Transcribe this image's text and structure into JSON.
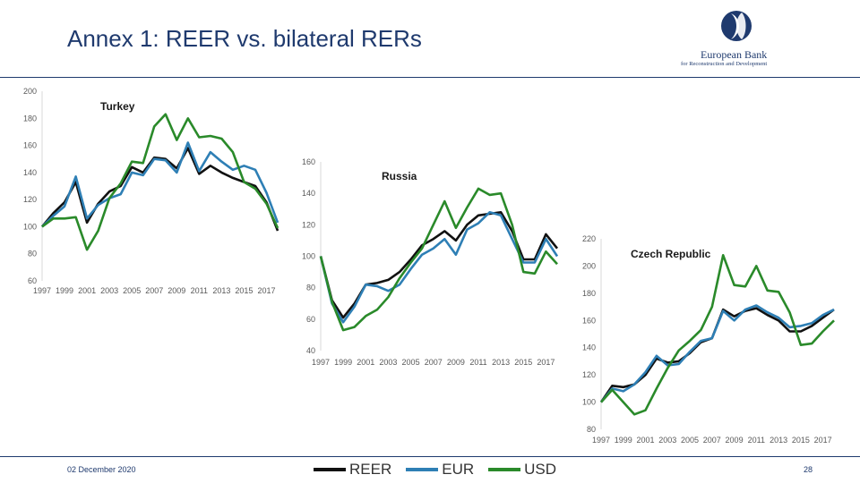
{
  "slide": {
    "title": "Annex 1: REER vs. bilateral RERs",
    "date": "02 December 2020",
    "page_number": "28",
    "logo_name": "European Bank",
    "logo_subtitle": "for Reconstruction and Development"
  },
  "colors": {
    "REER": "#111111",
    "EUR": "#2e7fb5",
    "USD": "#2a8a2a",
    "accent": "#1f3a6e"
  },
  "legend": [
    {
      "label": "REER",
      "color": "#111111"
    },
    {
      "label": "EUR",
      "color": "#2e7fb5"
    },
    {
      "label": "USD",
      "color": "#2a8a2a"
    }
  ],
  "chart_data": [
    {
      "type": "line",
      "title": "Turkey",
      "x": [
        1997,
        1998,
        1999,
        2000,
        2001,
        2002,
        2003,
        2004,
        2005,
        2006,
        2007,
        2008,
        2009,
        2010,
        2011,
        2012,
        2013,
        2014,
        2015,
        2016,
        2017,
        2018
      ],
      "xticks": [
        "1997",
        "1999",
        "2001",
        "2003",
        "2005",
        "2007",
        "2009",
        "2011",
        "2013",
        "2015",
        "2017"
      ],
      "ylim": [
        60,
        200
      ],
      "yticks": [
        "60",
        "80",
        "100",
        "120",
        "140",
        "160",
        "180",
        "200"
      ],
      "grid": false,
      "series": [
        {
          "name": "REER",
          "values": [
            100,
            110,
            118,
            133,
            103,
            117,
            126,
            130,
            144,
            140,
            151,
            150,
            143,
            158,
            139,
            145,
            140,
            136,
            133,
            130,
            118,
            97
          ]
        },
        {
          "name": "EUR",
          "values": [
            100,
            108,
            115,
            137,
            106,
            116,
            121,
            124,
            140,
            138,
            150,
            149,
            140,
            162,
            141,
            155,
            148,
            142,
            145,
            142,
            125,
            103
          ]
        },
        {
          "name": "USD",
          "values": [
            100,
            106,
            106,
            107,
            83,
            97,
            121,
            132,
            148,
            147,
            174,
            183,
            164,
            180,
            166,
            167,
            165,
            155,
            133,
            128,
            117,
            99
          ]
        }
      ]
    },
    {
      "type": "line",
      "title": "Russia",
      "x": [
        1997,
        1998,
        1999,
        2000,
        2001,
        2002,
        2003,
        2004,
        2005,
        2006,
        2007,
        2008,
        2009,
        2010,
        2011,
        2012,
        2013,
        2014,
        2015,
        2016,
        2017,
        2018
      ],
      "xticks": [
        "1997",
        "1999",
        "2001",
        "2003",
        "2005",
        "2007",
        "2009",
        "2011",
        "2013",
        "2015",
        "2017"
      ],
      "ylim": [
        40,
        160
      ],
      "yticks": [
        "40",
        "60",
        "80",
        "100",
        "120",
        "140",
        "160"
      ],
      "grid": false,
      "series": [
        {
          "name": "REER",
          "values": [
            100,
            72,
            61,
            70,
            82,
            83,
            85,
            90,
            98,
            107,
            111,
            116,
            110,
            120,
            126,
            127,
            128,
            116,
            98,
            98,
            114,
            105
          ]
        },
        {
          "name": "EUR",
          "values": [
            100,
            70,
            58,
            68,
            82,
            81,
            78,
            82,
            92,
            101,
            105,
            111,
            101,
            117,
            121,
            128,
            126,
            111,
            96,
            96,
            111,
            100
          ]
        },
        {
          "name": "USD",
          "values": [
            100,
            71,
            53,
            55,
            62,
            66,
            74,
            86,
            96,
            105,
            120,
            135,
            118,
            131,
            143,
            139,
            140,
            120,
            90,
            89,
            103,
            95
          ]
        }
      ]
    },
    {
      "type": "line",
      "title": "Czech Republic",
      "x": [
        1997,
        1998,
        1999,
        2000,
        2001,
        2002,
        2003,
        2004,
        2005,
        2006,
        2007,
        2008,
        2009,
        2010,
        2011,
        2012,
        2013,
        2014,
        2015,
        2016,
        2017,
        2018
      ],
      "xticks": [
        "1997",
        "1999",
        "2001",
        "2003",
        "2005",
        "2007",
        "2009",
        "2011",
        "2013",
        "2015",
        "2017"
      ],
      "ylim": [
        80,
        220
      ],
      "yticks": [
        "80",
        "100",
        "120",
        "140",
        "160",
        "180",
        "200",
        "220"
      ],
      "grid": false,
      "series": [
        {
          "name": "REER",
          "values": [
            100,
            112,
            111,
            113,
            120,
            132,
            129,
            130,
            136,
            144,
            147,
            168,
            163,
            167,
            169,
            164,
            160,
            152,
            152,
            156,
            162,
            168
          ]
        },
        {
          "name": "EUR",
          "values": [
            100,
            110,
            108,
            113,
            122,
            134,
            127,
            128,
            137,
            145,
            147,
            167,
            160,
            168,
            171,
            166,
            162,
            155,
            156,
            158,
            164,
            168
          ]
        },
        {
          "name": "USD",
          "values": [
            100,
            109,
            100,
            91,
            94,
            110,
            125,
            138,
            145,
            153,
            170,
            208,
            186,
            185,
            200,
            182,
            181,
            166,
            142,
            143,
            152,
            160
          ]
        }
      ]
    }
  ]
}
